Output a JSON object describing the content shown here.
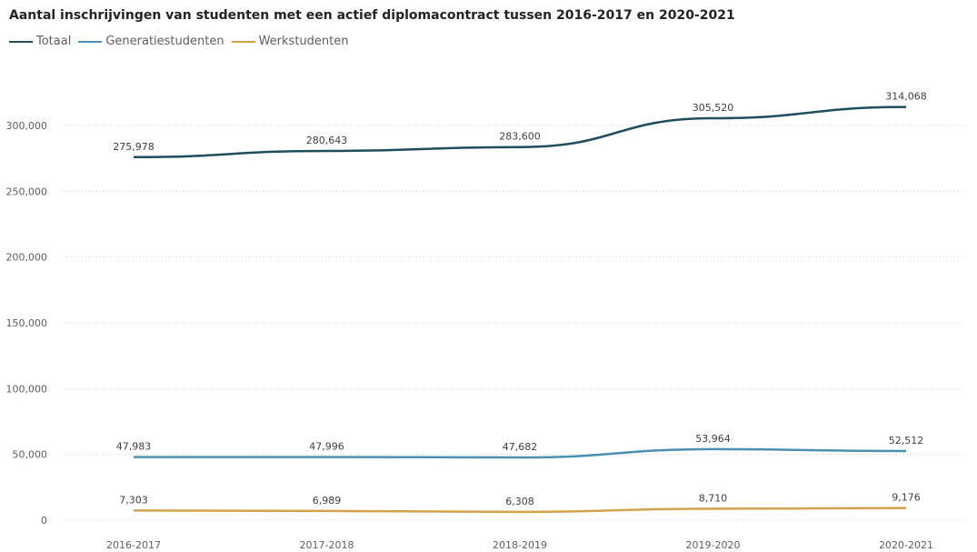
{
  "chart_data": {
    "type": "line",
    "title": "Aantal inschrijvingen van studenten met een actief diplomacontract tussen 2016-2017 en 2020-2021",
    "xlabel": "",
    "ylabel": "",
    "categories": [
      "2016-2017",
      "2017-2018",
      "2018-2019",
      "2019-2020",
      "2020-2021"
    ],
    "ylim": [
      0,
      300000
    ],
    "yticks": [
      0,
      50000,
      100000,
      150000,
      200000,
      250000,
      300000
    ],
    "ytick_labels": [
      "0",
      "50,000",
      "100,000",
      "150,000",
      "200,000",
      "250,000",
      "300,000"
    ],
    "grid": true,
    "legend_position": "top-left",
    "series": [
      {
        "name": "Totaal",
        "color": "#1f4e5f",
        "values": [
          275978,
          280643,
          283600,
          305520,
          314068
        ],
        "labels": [
          "275,978",
          "280,643",
          "283,600",
          "305,520",
          "314,068"
        ]
      },
      {
        "name": "Generatiestudenten",
        "color": "#4a90b0",
        "values": [
          47983,
          47996,
          47682,
          53964,
          52512
        ],
        "labels": [
          "47,983",
          "47,996",
          "47,682",
          "53,964",
          "52,512"
        ]
      },
      {
        "name": "Werkstudenten",
        "color": "#d4a24c",
        "values": [
          7303,
          6989,
          6308,
          8710,
          9176
        ],
        "labels": [
          "7,303",
          "6,989",
          "6,308",
          "8,710",
          "9,176"
        ]
      }
    ]
  }
}
